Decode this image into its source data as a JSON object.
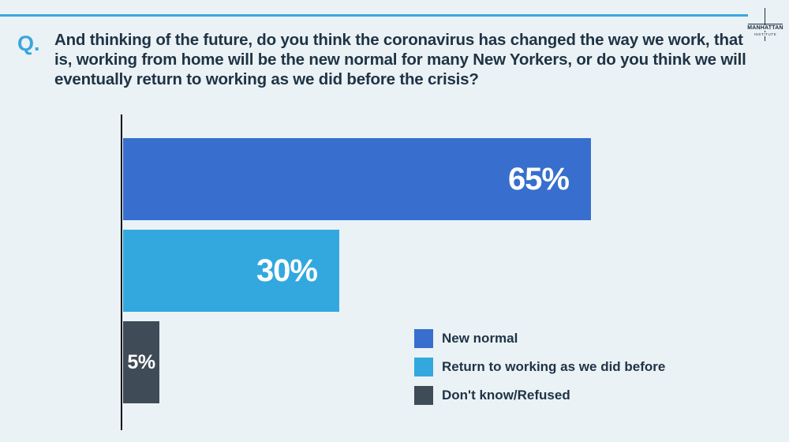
{
  "header": {
    "q_label": "Q.",
    "question": "And thinking of the future, do you think the coronavirus has changed the way we work, that is, working from home will be the new normal for many New Yorkers, or do you think we will eventually return to working as we did before the crisis?",
    "logo_line1": "MANHATTAN",
    "logo_line2": "INSTITUTE"
  },
  "chart_data": {
    "type": "bar",
    "orientation": "horizontal",
    "categories": [
      "New normal",
      "Return to working as we did before",
      "Don't know/Refused"
    ],
    "values": [
      65,
      30,
      5
    ],
    "value_labels": [
      "65%",
      "30%",
      "5%"
    ],
    "colors": [
      "#386fce",
      "#32a8df",
      "#404b58"
    ],
    "xlim": [
      0,
      100
    ],
    "grid": false,
    "legend_placement": "bottom-right"
  }
}
